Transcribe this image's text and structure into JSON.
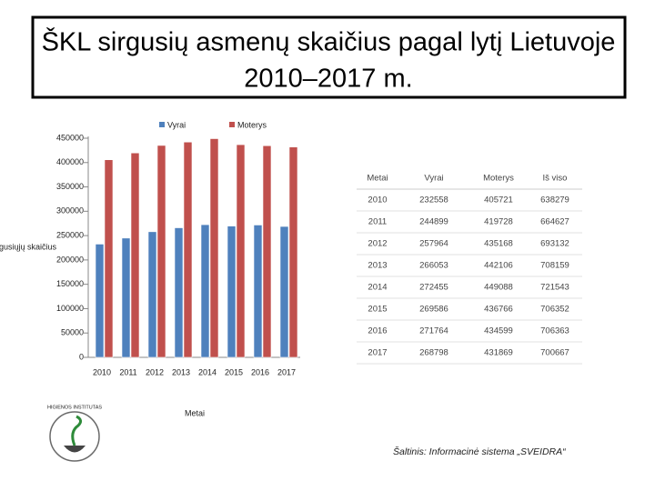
{
  "chart_data": {
    "type": "bar",
    "title": [
      "ŠKL sirgusių asmenų skaičius pagal lytį Lietuvoje",
      "2010–2017 m."
    ],
    "x_label": "Metai",
    "y_label": "Sirgusiųjų skaičius",
    "categories": [
      "2010",
      "2011",
      "2012",
      "2013",
      "2014",
      "2015",
      "2016",
      "2017"
    ],
    "series": [
      {
        "name": "Vyrai",
        "color": "#4f81bd",
        "values": [
          232558,
          244899,
          257964,
          266053,
          272455,
          269586,
          271764,
          268798
        ]
      },
      {
        "name": "Moterys",
        "color": "#c0504d",
        "values": [
          405721,
          419728,
          435168,
          442106,
          449088,
          436766,
          434599,
          431869
        ]
      }
    ],
    "ylim": [
      0,
      450000
    ],
    "yticks": [
      0,
      50000,
      100000,
      150000,
      200000,
      250000,
      300000,
      350000,
      400000,
      450000
    ],
    "legend": "top"
  },
  "table": {
    "total_header": "Iš viso",
    "totals": [
      638279,
      664627,
      693132,
      708159,
      721543,
      706352,
      706363,
      700667
    ]
  },
  "source": "Šaltinis: Informacinė sistema „SVEIDRA“",
  "logo": {
    "text": "HIGIENOS INSTITUTAS"
  }
}
